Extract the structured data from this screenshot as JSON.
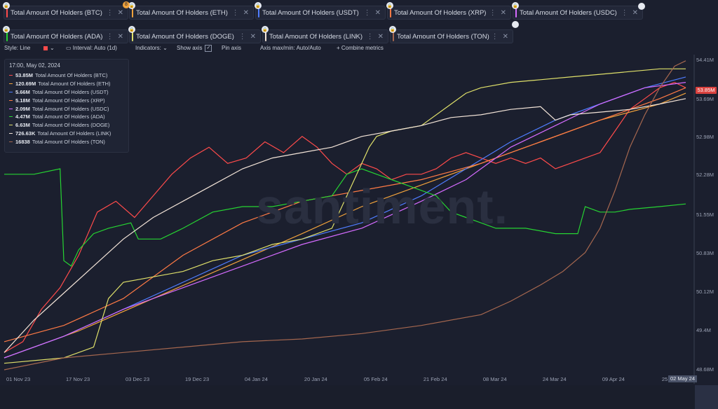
{
  "tabs": [
    {
      "label": "Total Amount Of Holders (BTC)",
      "color": "#ff4b4b"
    },
    {
      "label": "Total Amount Of Holders (ETH)",
      "color": "#f0a23c"
    },
    {
      "label": "Total Amount Of Holders (USDT)",
      "color": "#4f7dff"
    },
    {
      "label": "Total Amount Of Holders (XRP)",
      "color": "#ff7a45"
    },
    {
      "label": "Total Amount Of Holders (USDC)",
      "color": "#d56bff"
    },
    {
      "label": "Total Amount Of Holders (ADA)",
      "color": "#26d432"
    },
    {
      "label": "Total Amount Of Holders (DOGE)",
      "color": "#dfe06a"
    },
    {
      "label": "Total Amount Of Holders (LINK)",
      "color": "#f3e4d8"
    },
    {
      "label": "Total Amount Of Holders (TON)",
      "color": "#a5674f"
    }
  ],
  "tab_badge": "8",
  "toolbar": {
    "style": "Style: Line",
    "interval": "Interval: Auto (1d)",
    "indicators": "Indicators:",
    "show_axis": "Show axis",
    "pin_axis": "Pin axis",
    "axis_max_min": "Axis max/min: Auto/Auto",
    "combine": "Combine metrics"
  },
  "legend": {
    "time": "17:00, May 02, 2024",
    "rows": [
      {
        "value": "53.85M",
        "label": "Total Amount Of Holders (BTC)",
        "color": "#ff4b4b"
      },
      {
        "value": "120.69M",
        "label": "Total Amount Of Holders (ETH)",
        "color": "#f0a23c"
      },
      {
        "value": "5.66M",
        "label": "Total Amount Of Holders (USDT)",
        "color": "#4f7dff"
      },
      {
        "value": "5.18M",
        "label": "Total Amount Of Holders (XRP)",
        "color": "#ff7a45"
      },
      {
        "value": "2.09M",
        "label": "Total Amount Of Holders (USDC)",
        "color": "#d56bff"
      },
      {
        "value": "4.47M",
        "label": "Total Amount Of Holders (ADA)",
        "color": "#26d432"
      },
      {
        "value": "6.63M",
        "label": "Total Amount Of Holders (DOGE)",
        "color": "#dfe06a"
      },
      {
        "value": "726.63K",
        "label": "Total Amount Of Holders (LINK)",
        "color": "#f3e4d8"
      },
      {
        "value": "16838",
        "label": "Total Amount Of Holders (TON)",
        "color": "#a5674f"
      }
    ]
  },
  "watermark": "santiment.",
  "chart_data": {
    "type": "line",
    "x_labels": [
      "01 Nov 23",
      "17 Nov 23",
      "03 Dec 23",
      "19 Dec 23",
      "04 Jan 24",
      "20 Jan 24",
      "05 Feb 24",
      "21 Feb 24",
      "08 Mar 24",
      "24 Mar 24",
      "09 Apr 24",
      "25 Apr 24"
    ],
    "x_last_label": "02 May 24",
    "x_ticks": [
      0,
      16,
      32,
      48,
      64,
      80,
      96,
      112,
      128,
      144,
      160,
      176
    ],
    "x_range": [
      0,
      183
    ],
    "y_axis_labels": [
      "54.41M",
      "53.69M",
      "52.98M",
      "52.28M",
      "51.55M",
      "50.83M",
      "50.12M",
      "49.4M",
      "48.68M"
    ],
    "y_axis_values": [
      54.41,
      53.69,
      52.98,
      52.28,
      51.55,
      50.83,
      50.12,
      49.4,
      48.68
    ],
    "y_range": [
      48.68,
      54.41
    ],
    "y_highlight": "53.85M",
    "y_highlight_value": 53.85,
    "series": [
      {
        "name": "Total Amount Of Holders (BTC)",
        "color": "#ff4b4b",
        "points": [
          [
            0,
            49.0
          ],
          [
            5,
            49.2
          ],
          [
            10,
            49.8
          ],
          [
            15,
            50.2
          ],
          [
            20,
            50.8
          ],
          [
            25,
            51.6
          ],
          [
            30,
            51.8
          ],
          [
            35,
            51.5
          ],
          [
            40,
            51.9
          ],
          [
            45,
            52.3
          ],
          [
            50,
            52.6
          ],
          [
            55,
            52.8
          ],
          [
            60,
            52.5
          ],
          [
            65,
            52.6
          ],
          [
            70,
            52.9
          ],
          [
            75,
            52.7
          ],
          [
            80,
            53.0
          ],
          [
            84,
            52.8
          ],
          [
            88,
            52.5
          ],
          [
            92,
            52.3
          ],
          [
            96,
            52.5
          ],
          [
            100,
            52.4
          ],
          [
            104,
            52.2
          ],
          [
            108,
            52.3
          ],
          [
            112,
            52.3
          ],
          [
            116,
            52.4
          ],
          [
            120,
            52.6
          ],
          [
            124,
            52.7
          ],
          [
            128,
            52.6
          ],
          [
            132,
            52.5
          ],
          [
            136,
            52.6
          ],
          [
            140,
            52.5
          ],
          [
            144,
            52.6
          ],
          [
            148,
            52.4
          ],
          [
            152,
            52.5
          ],
          [
            156,
            52.6
          ],
          [
            160,
            52.7
          ],
          [
            164,
            53.1
          ],
          [
            168,
            53.5
          ],
          [
            172,
            53.7
          ],
          [
            176,
            53.9
          ],
          [
            180,
            54.0
          ],
          [
            183,
            53.9
          ]
        ]
      },
      {
        "name": "Total Amount Of Holders (ETH)",
        "color": "#f0a23c",
        "points": [
          [
            0,
            48.9
          ],
          [
            20,
            49.4
          ],
          [
            40,
            50.0
          ],
          [
            60,
            50.6
          ],
          [
            80,
            51.2
          ],
          [
            96,
            51.7
          ],
          [
            112,
            52.1
          ],
          [
            128,
            52.5
          ],
          [
            144,
            52.9
          ],
          [
            160,
            53.3
          ],
          [
            176,
            53.6
          ],
          [
            183,
            53.8
          ]
        ]
      },
      {
        "name": "Total Amount Of Holders (USDT)",
        "color": "#4f7dff",
        "points": [
          [
            0,
            48.9
          ],
          [
            16,
            49.3
          ],
          [
            32,
            49.8
          ],
          [
            48,
            50.3
          ],
          [
            64,
            50.8
          ],
          [
            80,
            51.1
          ],
          [
            96,
            51.4
          ],
          [
            112,
            51.9
          ],
          [
            124,
            52.4
          ],
          [
            136,
            52.9
          ],
          [
            148,
            53.3
          ],
          [
            160,
            53.6
          ],
          [
            172,
            53.9
          ],
          [
            183,
            54.1
          ]
        ]
      },
      {
        "name": "Total Amount Of Holders (XRP)",
        "color": "#ff7a45",
        "points": [
          [
            0,
            49.2
          ],
          [
            16,
            49.5
          ],
          [
            32,
            50.0
          ],
          [
            48,
            50.8
          ],
          [
            64,
            51.4
          ],
          [
            80,
            51.8
          ],
          [
            96,
            52.0
          ],
          [
            112,
            52.2
          ],
          [
            128,
            52.5
          ],
          [
            144,
            52.9
          ],
          [
            160,
            53.3
          ],
          [
            176,
            53.7
          ],
          [
            183,
            53.9
          ]
        ]
      },
      {
        "name": "Total Amount Of Holders (USDC)",
        "color": "#d56bff",
        "points": [
          [
            0,
            48.9
          ],
          [
            16,
            49.3
          ],
          [
            32,
            49.8
          ],
          [
            48,
            50.2
          ],
          [
            64,
            50.6
          ],
          [
            80,
            51.0
          ],
          [
            96,
            51.3
          ],
          [
            112,
            51.8
          ],
          [
            124,
            52.2
          ],
          [
            136,
            52.8
          ],
          [
            148,
            53.2
          ],
          [
            160,
            53.6
          ],
          [
            172,
            53.9
          ],
          [
            183,
            54.0
          ]
        ]
      },
      {
        "name": "Total Amount Of Holders (ADA)",
        "color": "#26d432",
        "points": [
          [
            0,
            52.3
          ],
          [
            8,
            52.3
          ],
          [
            15,
            52.4
          ],
          [
            16,
            50.7
          ],
          [
            18,
            50.6
          ],
          [
            20,
            50.9
          ],
          [
            24,
            51.2
          ],
          [
            28,
            51.3
          ],
          [
            34,
            51.4
          ],
          [
            36,
            51.1
          ],
          [
            42,
            51.1
          ],
          [
            48,
            51.3
          ],
          [
            56,
            51.6
          ],
          [
            64,
            51.7
          ],
          [
            72,
            51.7
          ],
          [
            80,
            51.8
          ],
          [
            88,
            51.9
          ],
          [
            92,
            52.3
          ],
          [
            96,
            52.4
          ],
          [
            100,
            52.3
          ],
          [
            104,
            52.2
          ],
          [
            108,
            52.1
          ],
          [
            112,
            52.0
          ],
          [
            116,
            51.9
          ],
          [
            120,
            51.6
          ],
          [
            124,
            51.5
          ],
          [
            128,
            51.4
          ],
          [
            132,
            51.3
          ],
          [
            140,
            51.3
          ],
          [
            148,
            51.2
          ],
          [
            154,
            51.2
          ],
          [
            156,
            51.7
          ],
          [
            160,
            51.6
          ],
          [
            164,
            51.6
          ],
          [
            168,
            51.65
          ],
          [
            176,
            51.7
          ],
          [
            183,
            51.75
          ]
        ]
      },
      {
        "name": "Total Amount Of Holders (DOGE)",
        "color": "#dfe06a",
        "points": [
          [
            0,
            48.8
          ],
          [
            16,
            48.9
          ],
          [
            24,
            49.1
          ],
          [
            28,
            50.0
          ],
          [
            32,
            50.3
          ],
          [
            40,
            50.4
          ],
          [
            48,
            50.5
          ],
          [
            56,
            50.7
          ],
          [
            64,
            50.8
          ],
          [
            72,
            51.0
          ],
          [
            80,
            51.1
          ],
          [
            88,
            51.3
          ],
          [
            90,
            51.6
          ],
          [
            94,
            52.2
          ],
          [
            98,
            52.8
          ],
          [
            100,
            53.0
          ],
          [
            104,
            53.1
          ],
          [
            112,
            53.2
          ],
          [
            120,
            53.6
          ],
          [
            124,
            53.8
          ],
          [
            128,
            53.9
          ],
          [
            136,
            54.0
          ],
          [
            144,
            54.05
          ],
          [
            152,
            54.1
          ],
          [
            160,
            54.15
          ],
          [
            168,
            54.2
          ],
          [
            176,
            54.25
          ],
          [
            183,
            54.25
          ]
        ]
      },
      {
        "name": "Total Amount Of Holders (LINK)",
        "color": "#f3e4d8",
        "points": [
          [
            0,
            49.0
          ],
          [
            8,
            49.6
          ],
          [
            16,
            50.1
          ],
          [
            24,
            50.6
          ],
          [
            32,
            51.1
          ],
          [
            40,
            51.5
          ],
          [
            48,
            51.8
          ],
          [
            56,
            52.1
          ],
          [
            64,
            52.4
          ],
          [
            72,
            52.6
          ],
          [
            80,
            52.7
          ],
          [
            88,
            52.8
          ],
          [
            96,
            53.0
          ],
          [
            104,
            53.1
          ],
          [
            112,
            53.2
          ],
          [
            120,
            53.35
          ],
          [
            128,
            53.4
          ],
          [
            136,
            53.5
          ],
          [
            144,
            53.55
          ],
          [
            148,
            53.3
          ],
          [
            152,
            53.4
          ],
          [
            160,
            53.45
          ],
          [
            168,
            53.5
          ],
          [
            176,
            53.6
          ],
          [
            183,
            53.7
          ]
        ]
      },
      {
        "name": "Total Amount Of Holders (TON)",
        "color": "#a5674f",
        "points": [
          [
            0,
            48.68
          ],
          [
            16,
            48.9
          ],
          [
            32,
            49.0
          ],
          [
            48,
            49.1
          ],
          [
            64,
            49.2
          ],
          [
            80,
            49.25
          ],
          [
            96,
            49.35
          ],
          [
            112,
            49.5
          ],
          [
            128,
            49.7
          ],
          [
            136,
            49.95
          ],
          [
            144,
            50.25
          ],
          [
            150,
            50.5
          ],
          [
            156,
            50.85
          ],
          [
            160,
            51.3
          ],
          [
            164,
            52.0
          ],
          [
            168,
            52.8
          ],
          [
            172,
            53.4
          ],
          [
            176,
            53.9
          ],
          [
            180,
            54.3
          ],
          [
            183,
            54.4
          ]
        ]
      }
    ]
  }
}
